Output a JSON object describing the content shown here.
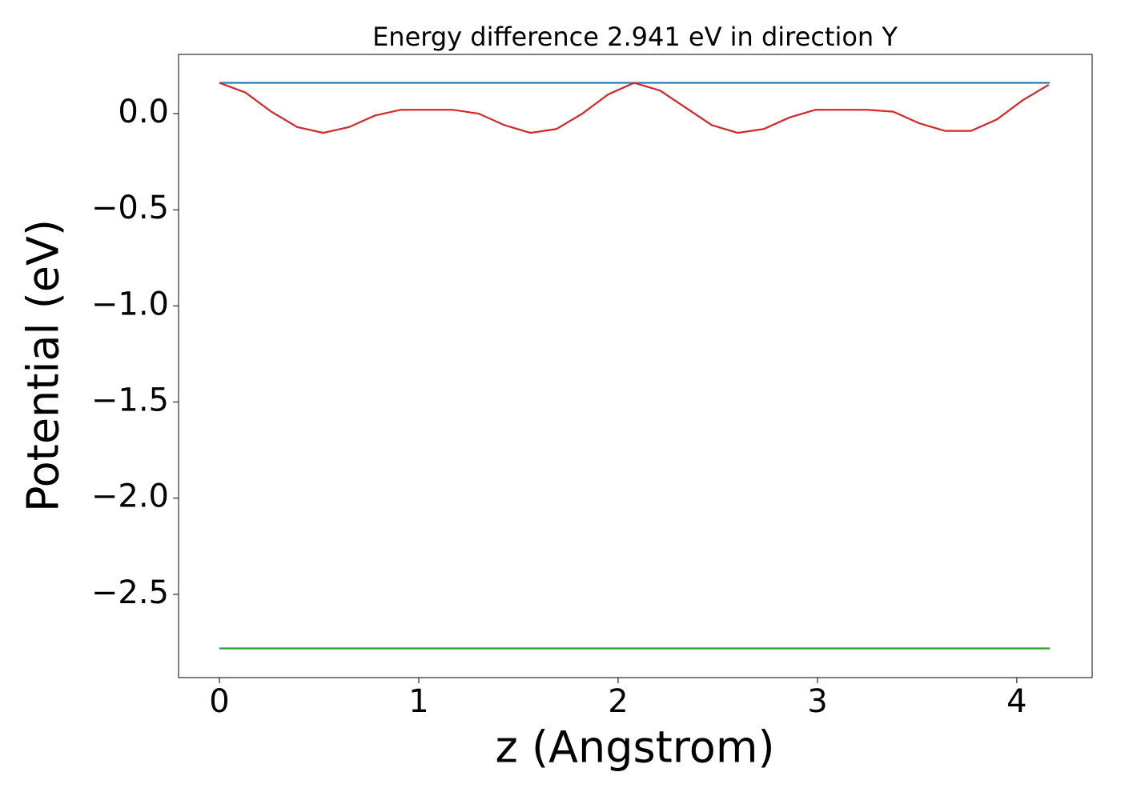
{
  "chart_data": {
    "type": "line",
    "title": "Energy difference 2.941 eV in direction Y",
    "xlabel": "z (Angstrom)",
    "ylabel": "Potential (eV)",
    "xlim": [
      -0.205,
      4.378
    ],
    "ylim": [
      -2.933,
      0.308
    ],
    "xticks": [
      0,
      1,
      2,
      3,
      4
    ],
    "yticks": [
      {
        "value": 0,
        "label": "0.0"
      },
      {
        "value": -0.5,
        "label": "−0.5"
      },
      {
        "value": -1,
        "label": "−1.0"
      },
      {
        "value": -1.5,
        "label": "−1.5"
      },
      {
        "value": -2,
        "label": "−2.0"
      },
      {
        "value": -2.5,
        "label": "−2.5"
      }
    ],
    "series": [
      {
        "color": "#1f77b4",
        "x": [
          0,
          4.165
        ],
        "values": [
          0.16,
          0.16
        ]
      },
      {
        "color": "#2ca02c",
        "x": [
          0,
          4.165
        ],
        "values": [
          -2.781,
          -2.781
        ]
      },
      {
        "color": "#d62728",
        "x": [
          0,
          0.13,
          0.26,
          0.39,
          0.52,
          0.65,
          0.78,
          0.91,
          1.04,
          1.17,
          1.3,
          1.43,
          1.56,
          1.69,
          1.82,
          1.95,
          2.08,
          2.21,
          2.34,
          2.47,
          2.6,
          2.73,
          2.86,
          2.99,
          3.12,
          3.25,
          3.38,
          3.51,
          3.64,
          3.77,
          3.9,
          4.03,
          4.16
        ],
        "values": [
          0.16,
          0.11,
          0.01,
          -0.07,
          -0.1,
          -0.07,
          -0.01,
          0.02,
          0.02,
          0.02,
          0,
          -0.06,
          -0.1,
          -0.08,
          0,
          0.1,
          0.16,
          0.12,
          0.03,
          -0.06,
          -0.1,
          -0.08,
          -0.02,
          0.02,
          0.02,
          0.02,
          0.01,
          -0.05,
          -0.09,
          -0.09,
          -0.03,
          0.07,
          0.15
        ]
      }
    ]
  }
}
